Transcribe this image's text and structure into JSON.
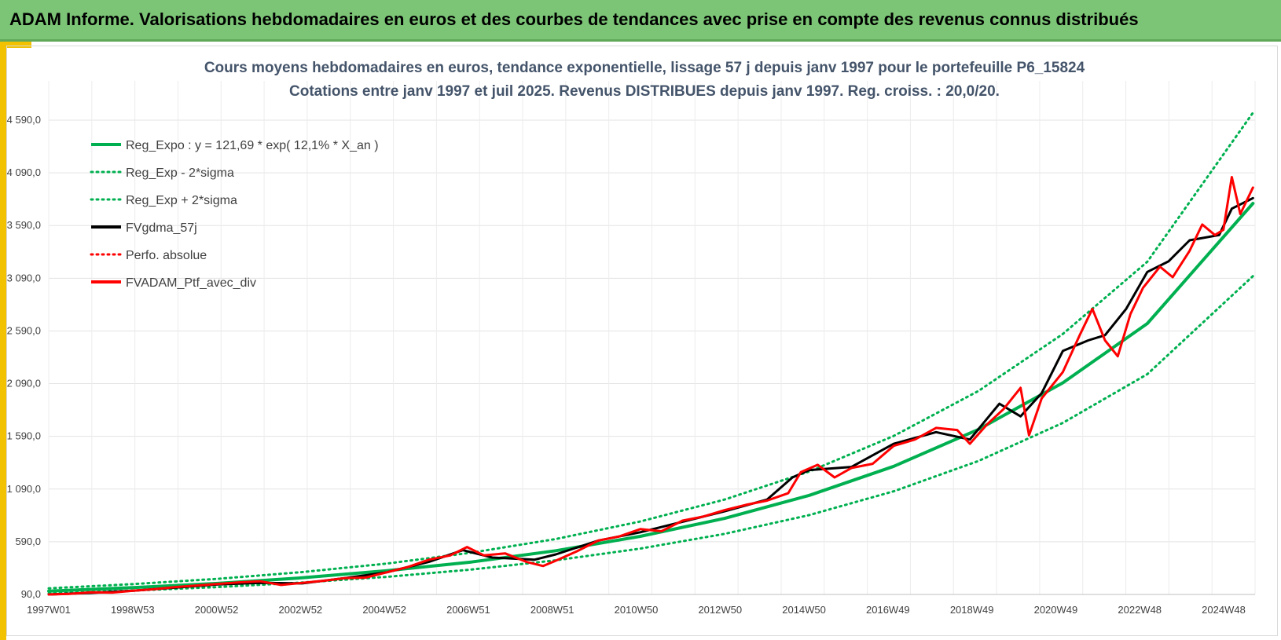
{
  "header": {
    "title": "ADAM Informe. Valorisations hebdomadaires en euros et des courbes de tendances avec prise en compte des revenus connus distribués"
  },
  "colors": {
    "header_bg": "#7cc576",
    "accent": "#f2c200",
    "regression": "#00b050",
    "smoothed": "#000000",
    "portfolio": "#ff0000",
    "title": "#44546a"
  },
  "chart_data": {
    "type": "line",
    "title_line1": "Cours moyens hebdomadaires  en euros, tendance exponentielle, lissage 57 j depuis janv 1997 pour le portefeuille P6_15824",
    "title_line2": "Cotations  entre janv 1997 et juil 2025. Revenus DISTRIBUES depuis janv 1997. Reg. croiss. : 20,0/20.",
    "x_ticks": [
      "1997W01",
      "1998W53",
      "2000W52",
      "2002W52",
      "2004W52",
      "2006W51",
      "2008W51",
      "2010W50",
      "2012W50",
      "2014W50",
      "2016W49",
      "2018W49",
      "2020W49",
      "2022W48",
      "2024W48"
    ],
    "x_range": [
      1997.0,
      2025.55
    ],
    "y_ticks": [
      "90,0",
      "590,0",
      "1 090,0",
      "1 590,0",
      "2 090,0",
      "2 590,0",
      "3 090,0",
      "3 590,0",
      "4 090,0",
      "4 590,0"
    ],
    "ylim": [
      90,
      4590
    ],
    "grid": true,
    "legend_position": "top-left",
    "legend": [
      {
        "name": "Reg_Expo : y = 121,69 * exp( 12,1% *  X_an )",
        "style": "solid",
        "color": "#00b050"
      },
      {
        "name": "Reg_Exp - 2*sigma",
        "style": "dotted",
        "color": "#00b050"
      },
      {
        "name": "Reg_Exp + 2*sigma",
        "style": "dotted",
        "color": "#00b050"
      },
      {
        "name": "FVgdma_57j",
        "style": "solid",
        "color": "#000000"
      },
      {
        "name": "Perfo. absolue",
        "style": "dotted",
        "color": "#ff0000"
      },
      {
        "name": "FVADAM_Ptf_avec_div",
        "style": "solid",
        "color": "#ff0000"
      }
    ],
    "series": [
      {
        "name": "Reg_Expo : y = 121,69 * exp( 12,1% *  X_an )",
        "x": [
          1997.0,
          1999.0,
          2001.0,
          2003.0,
          2005.0,
          2007.0,
          2009.0,
          2011.0,
          2013.0,
          2015.0,
          2017.0,
          2019.0,
          2021.0,
          2023.0,
          2025.5
        ],
        "y": [
          122,
          155,
          195,
          248,
          315,
          398,
          505,
          641,
          812,
          1030,
          1306,
          1655,
          2098,
          2660,
          3800
        ]
      },
      {
        "name": "Reg_Exp - 2*sigma",
        "x": [
          1997.0,
          1999.0,
          2001.0,
          2003.0,
          2005.0,
          2007.0,
          2009.0,
          2011.0,
          2013.0,
          2015.0,
          2017.0,
          2019.0,
          2021.0,
          2023.0,
          2025.5
        ],
        "y": [
          100,
          127,
          160,
          203,
          257,
          326,
          414,
          525,
          665,
          843,
          1069,
          1356,
          1718,
          2180,
          3110
        ]
      },
      {
        "name": "Reg_Exp + 2*sigma",
        "x": [
          1997.0,
          1999.0,
          2001.0,
          2003.0,
          2005.0,
          2007.0,
          2009.0,
          2011.0,
          2013.0,
          2015.0,
          2017.0,
          2019.0,
          2021.0,
          2023.0,
          2025.5
        ],
        "y": [
          148,
          188,
          238,
          302,
          383,
          486,
          616,
          782,
          991,
          1257,
          1594,
          2020,
          2561,
          3247,
          4660
        ]
      },
      {
        "name": "FVgdma_57j",
        "x": [
          1997.0,
          1998.0,
          1999.0,
          2000.0,
          2001.0,
          2002.0,
          2003.0,
          2004.0,
          2005.0,
          2006.0,
          2006.8,
          2007.5,
          2008.5,
          2009.0,
          2010.0,
          2011.0,
          2012.0,
          2013.0,
          2014.0,
          2014.6,
          2015.0,
          2016.0,
          2017.0,
          2018.0,
          2018.8,
          2019.5,
          2020.0,
          2020.5,
          2021.0,
          2021.6,
          2022.0,
          2022.5,
          2023.0,
          2023.5,
          2024.0,
          2024.7,
          2025.0,
          2025.5
        ],
        "y": [
          90,
          105,
          125,
          155,
          185,
          200,
          195,
          245,
          300,
          400,
          510,
          440,
          420,
          470,
          600,
          680,
          780,
          880,
          990,
          1200,
          1270,
          1300,
          1520,
          1630,
          1560,
          1900,
          1780,
          2000,
          2400,
          2500,
          2550,
          2800,
          3150,
          3250,
          3450,
          3500,
          3750,
          3850
        ]
      },
      {
        "name": "FVADAM_Ptf_avec_div",
        "x": [
          1997.0,
          1997.5,
          1998.0,
          1998.5,
          1999.0,
          1999.5,
          2000.0,
          2000.5,
          2001.0,
          2001.5,
          2002.0,
          2002.5,
          2003.0,
          2003.5,
          2004.0,
          2004.5,
          2005.0,
          2005.5,
          2006.0,
          2006.5,
          2006.9,
          2007.3,
          2007.8,
          2008.3,
          2008.7,
          2009.0,
          2009.5,
          2010.0,
          2010.5,
          2011.0,
          2011.5,
          2012.0,
          2012.5,
          2013.0,
          2013.5,
          2014.0,
          2014.5,
          2014.8,
          2015.2,
          2015.6,
          2016.0,
          2016.5,
          2017.0,
          2017.5,
          2018.0,
          2018.5,
          2018.8,
          2019.2,
          2019.6,
          2020.0,
          2020.2,
          2020.5,
          2021.0,
          2021.4,
          2021.7,
          2022.0,
          2022.3,
          2022.6,
          2022.9,
          2023.3,
          2023.6,
          2024.0,
          2024.3,
          2024.6,
          2024.8,
          2025.0,
          2025.2,
          2025.5
        ],
        "y": [
          90,
          95,
          110,
          108,
          125,
          140,
          160,
          175,
          190,
          205,
          215,
          180,
          200,
          220,
          245,
          250,
          300,
          350,
          420,
          460,
          540,
          460,
          480,
          400,
          360,
          410,
          500,
          600,
          640,
          710,
          690,
          790,
          830,
          890,
          940,
          980,
          1050,
          1250,
          1320,
          1200,
          1290,
          1330,
          1500,
          1560,
          1670,
          1650,
          1520,
          1700,
          1850,
          2050,
          1600,
          1950,
          2200,
          2550,
          2800,
          2500,
          2350,
          2750,
          3000,
          3200,
          3100,
          3350,
          3600,
          3500,
          3550,
          4050,
          3700,
          3950
        ]
      }
    ]
  }
}
